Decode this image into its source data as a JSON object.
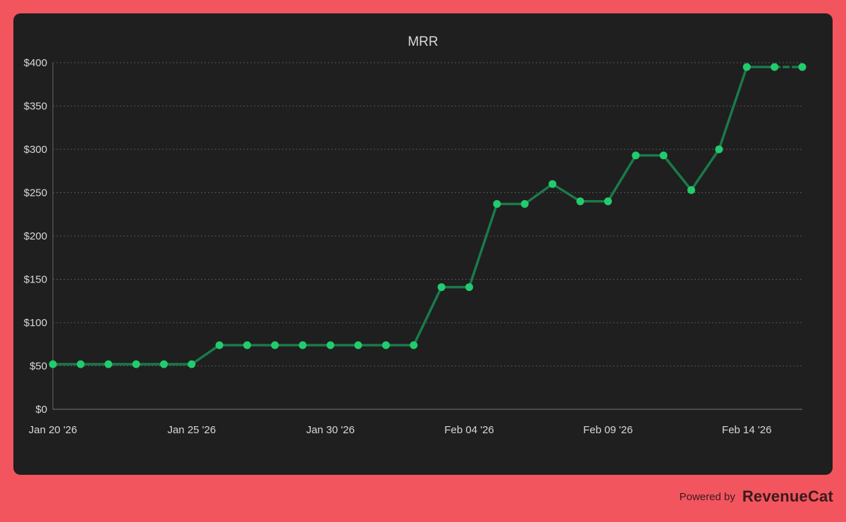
{
  "footer": {
    "powered_label": "Powered by",
    "brand": "RevenueCat"
  },
  "colors": {
    "background": "#f2555e",
    "card": "#1f1f1f",
    "line": "#1a7a4a",
    "point": "#22cc6e",
    "grid": "#555555",
    "text": "#d8d8d8"
  },
  "chart_data": {
    "type": "line",
    "title": "MRR",
    "xlabel": "",
    "ylabel": "",
    "ylim": [
      0,
      400
    ],
    "yticks": [
      0,
      50,
      100,
      150,
      200,
      250,
      300,
      350,
      400
    ],
    "ytick_labels": [
      "$0",
      "$50",
      "$100",
      "$150",
      "$200",
      "$250",
      "$300",
      "$350",
      "$400"
    ],
    "xtick_labels": [
      "Jan 20 '26",
      "Jan 25 '26",
      "Jan 30 '26",
      "Feb 04 '26",
      "Feb 09 '26",
      "Feb 14 '26"
    ],
    "xtick_index": [
      0,
      5,
      10,
      15,
      20,
      25
    ],
    "grid": "horizontal dotted",
    "last_segment_dashed": true,
    "series": [
      {
        "x": [
          "2026-01-20",
          "2026-01-21",
          "2026-01-22",
          "2026-01-23",
          "2026-01-24",
          "2026-01-25",
          "2026-01-26",
          "2026-01-27",
          "2026-01-28",
          "2026-01-29",
          "2026-01-30",
          "2026-01-31",
          "2026-02-01",
          "2026-02-02",
          "2026-02-03",
          "2026-02-04",
          "2026-02-05",
          "2026-02-06",
          "2026-02-07",
          "2026-02-08",
          "2026-02-09",
          "2026-02-10",
          "2026-02-11",
          "2026-02-12",
          "2026-02-13",
          "2026-02-14",
          "2026-02-15",
          "2026-02-16"
        ],
        "values": [
          52,
          52,
          52,
          52,
          52,
          52,
          74,
          74,
          74,
          74,
          74,
          74,
          74,
          74,
          141,
          141,
          237,
          237,
          260,
          240,
          240,
          293,
          293,
          253,
          300,
          395,
          395,
          395
        ]
      }
    ]
  }
}
